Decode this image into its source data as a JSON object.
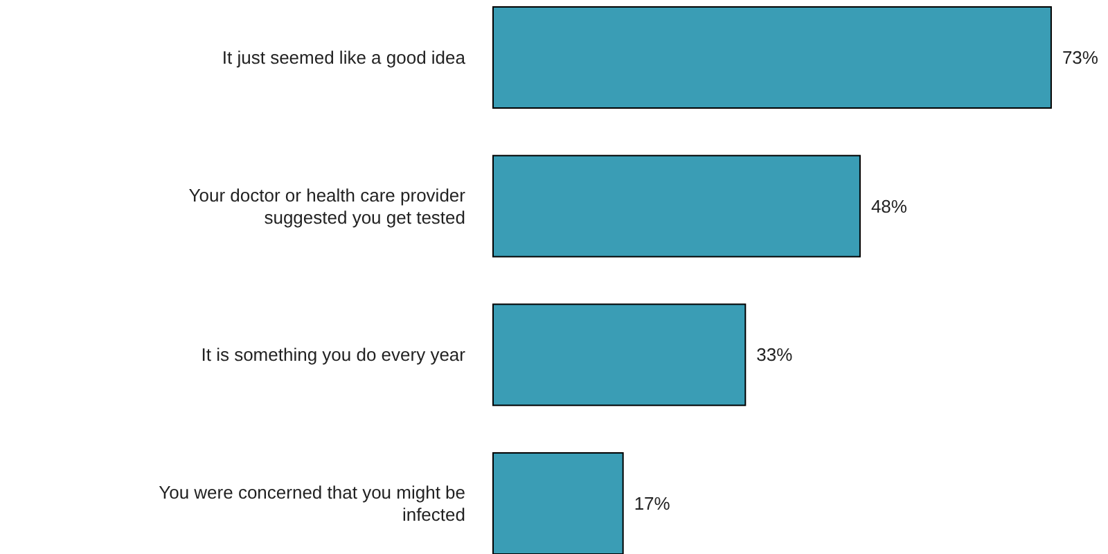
{
  "chart_data": {
    "type": "bar",
    "orientation": "horizontal",
    "categories": [
      "It just seemed like a good idea",
      "Your doctor or health care provider suggested you get tested",
      "It is something you do every year",
      "You were concerned that you might be infected"
    ],
    "values": [
      73,
      48,
      33,
      17
    ],
    "value_labels": [
      "73%",
      "48%",
      "33%",
      "17%"
    ],
    "color": "#3a9db5"
  }
}
